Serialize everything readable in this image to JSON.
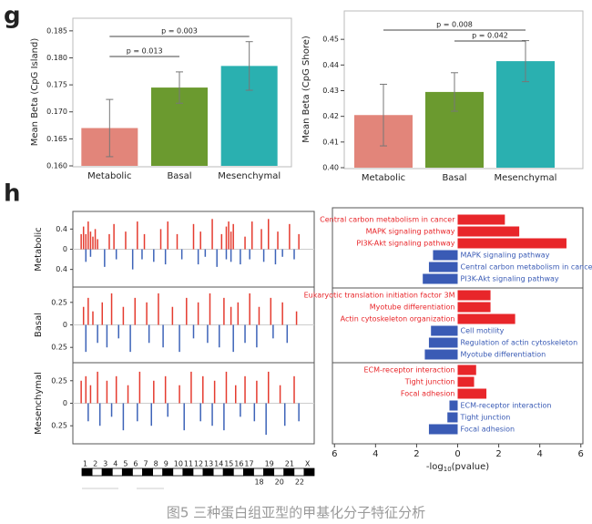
{
  "panel_labels": [
    "g",
    "h"
  ],
  "caption": "图5 三种蛋白组亚型的甲基化分子特征分析",
  "chart_data": [
    {
      "type": "bar",
      "ylabel": "Mean Beta (CpG Island)",
      "categories": [
        "Metabolic",
        "Basal",
        "Mesenchymal"
      ],
      "values": [
        0.167,
        0.1745,
        0.1785
      ],
      "errors": [
        0.0053,
        0.0029,
        0.0045
      ],
      "colors": [
        "#e2857a",
        "#6b9a2f",
        "#2ab0b0"
      ],
      "ylim": [
        0.16,
        0.187
      ],
      "yticks": [
        {
          "value": 0.16,
          "label": "0.160"
        },
        0.165,
        {
          "value": 0.17,
          "label": "0.170"
        },
        0.175,
        {
          "value": 0.18,
          "label": "0.180"
        },
        0.185
      ],
      "annotations": [
        {
          "text": "p = 0.013",
          "from": 0,
          "to": 1
        },
        {
          "text": "p = 0.003",
          "from": 0,
          "to": 2
        }
      ]
    },
    {
      "type": "bar",
      "ylabel": "Mean Beta (CpG Shore)",
      "categories": [
        "Metabolic",
        "Basal",
        "Mesenchymal"
      ],
      "values": [
        0.4205,
        0.4295,
        0.4415
      ],
      "errors": [
        0.012,
        0.0075,
        0.008
      ],
      "colors": [
        "#e2857a",
        "#6b9a2f",
        "#2ab0b0"
      ],
      "ylim": [
        0.4,
        0.46
      ],
      "yticks": [
        {
          "value": 0.4,
          "label": "0.40"
        },
        0.41,
        0.42,
        0.43,
        0.44,
        0.45
      ],
      "annotations": [
        {
          "text": "p = 0.008",
          "from": 0,
          "to": 2
        },
        {
          "text": "p = 0.042",
          "from": 1,
          "to": 2
        }
      ]
    },
    {
      "type": "manhattan",
      "xlim": [
        0,
        100
      ],
      "pos_color": "#e53b2f",
      "neg_color": "#3d63b8",
      "chromosomes": [
        "1",
        "2",
        "3",
        "4",
        "5",
        "6",
        "7",
        "8",
        "9",
        "10",
        "11",
        "12",
        "13",
        "14",
        "15",
        "16",
        "17",
        "18",
        "19",
        "20",
        "21",
        "22",
        "X"
      ],
      "panels": [
        {
          "name": "Metabolic",
          "ylim": [
            -0.75,
            0.75
          ],
          "yticks": [
            0.4,
            0,
            {
              "value": -0.4,
              "label": "0.4"
            }
          ],
          "x": [
            2,
            3,
            4,
            5,
            6,
            7,
            8,
            9,
            14,
            16,
            21,
            26,
            29,
            36,
            39,
            43,
            50,
            53,
            58,
            62,
            64,
            65,
            66,
            67,
            72,
            75,
            79,
            82,
            86,
            91,
            95,
            4,
            6,
            12,
            17,
            24,
            28,
            33,
            38,
            45,
            52,
            55,
            60,
            64,
            66,
            70,
            74,
            80,
            85,
            88,
            93
          ],
          "values": [
            0.3,
            0.45,
            0.3,
            0.55,
            0.35,
            0.25,
            0.4,
            0.2,
            0.3,
            0.5,
            0.35,
            0.55,
            0.3,
            0.4,
            0.55,
            0.3,
            0.5,
            0.35,
            0.6,
            0.3,
            0.45,
            0.55,
            0.35,
            0.5,
            0.25,
            0.55,
            0.4,
            0.6,
            0.35,
            0.5,
            0.3,
            -0.25,
            -0.15,
            -0.35,
            -0.2,
            -0.4,
            -0.2,
            -0.25,
            -0.3,
            -0.2,
            -0.3,
            -0.15,
            -0.35,
            -0.2,
            -0.25,
            -0.3,
            -0.2,
            -0.25,
            -0.3,
            -0.15,
            -0.2
          ]
        },
        {
          "name": "Basal",
          "ylim": [
            -0.42,
            0.42
          ],
          "yticks": [
            0.25,
            0,
            {
              "value": -0.25,
              "label": "0.25"
            }
          ],
          "x": [
            3,
            5,
            7,
            11,
            15,
            20,
            25,
            30,
            35,
            41,
            47,
            52,
            57,
            63,
            66,
            69,
            74,
            78,
            83,
            88,
            94,
            4,
            9,
            13,
            18,
            23,
            31,
            37,
            44,
            50,
            56,
            61,
            67,
            72,
            77,
            84,
            90
          ],
          "values": [
            0.2,
            0.3,
            0.15,
            0.25,
            0.35,
            0.2,
            0.3,
            0.25,
            0.35,
            0.2,
            0.3,
            0.25,
            0.35,
            0.3,
            0.2,
            0.25,
            0.35,
            0.2,
            0.3,
            0.25,
            0.15,
            -0.3,
            -0.2,
            -0.25,
            -0.15,
            -0.3,
            -0.2,
            -0.25,
            -0.3,
            -0.15,
            -0.2,
            -0.25,
            -0.3,
            -0.2,
            -0.25,
            -0.15,
            -0.2
          ]
        },
        {
          "name": "Mesenchymal",
          "ylim": [
            -0.45,
            0.45
          ],
          "yticks": [
            0.25,
            0,
            {
              "value": -0.25,
              "label": "0.25"
            }
          ],
          "x": [
            2,
            4,
            6,
            9,
            13,
            17,
            22,
            27,
            33,
            38,
            44,
            49,
            54,
            59,
            64,
            68,
            72,
            77,
            82,
            87,
            93,
            5,
            10,
            15,
            20,
            26,
            32,
            39,
            46,
            53,
            58,
            63,
            70,
            76,
            81,
            89,
            95
          ],
          "values": [
            0.25,
            0.3,
            0.2,
            0.35,
            0.25,
            0.3,
            0.2,
            0.35,
            0.25,
            0.3,
            0.2,
            0.35,
            0.3,
            0.25,
            0.35,
            0.2,
            0.3,
            0.25,
            0.35,
            0.2,
            0.3,
            -0.2,
            -0.25,
            -0.15,
            -0.3,
            -0.2,
            -0.25,
            -0.15,
            -0.3,
            -0.2,
            -0.25,
            -0.3,
            -0.15,
            -0.2,
            -0.35,
            -0.25,
            -0.2
          ]
        }
      ]
    },
    {
      "type": "hbar",
      "xlabel": [
        "-log",
        "10",
        "(pvalue)"
      ],
      "pos_color": "#e8262a",
      "neg_color": "#3a5bb5",
      "xlim": [
        -6.1,
        6.1
      ],
      "xticks": [
        {
          "value": -6,
          "label": "6"
        },
        {
          "value": -4,
          "label": "4"
        },
        {
          "value": -2,
          "label": "2"
        },
        0,
        2,
        4,
        6
      ],
      "groups": [
        {
          "categories": [
            "Central carbon metabolism in cancer",
            "MAPK signaling pathway",
            "PI3K-Akt signaling pathway",
            "MAPK signaling pathway",
            "Central carbon metabolism in cancer",
            "PI3K-Akt signaling pathway"
          ],
          "values": [
            2.3,
            3.0,
            5.3,
            -1.2,
            -1.4,
            -1.7
          ]
        },
        {
          "categories": [
            "Eukaryotic translation initiation factor 3M",
            "Myotube differentiation",
            "Actin cytoskeleton organization",
            "Cell motility",
            "Regulation of actin cytoskeleton",
            "Myotube differentiation"
          ],
          "values": [
            1.6,
            1.6,
            2.8,
            -1.3,
            -1.4,
            -1.6
          ]
        },
        {
          "categories": [
            "ECM-receptor interaction",
            "Tight junction",
            "Focal adhesion",
            "ECM-receptor interaction",
            "Tight junction",
            "Focal adhesion"
          ],
          "values": [
            0.9,
            0.8,
            1.4,
            -0.4,
            -0.5,
            -1.4
          ]
        }
      ]
    }
  ]
}
